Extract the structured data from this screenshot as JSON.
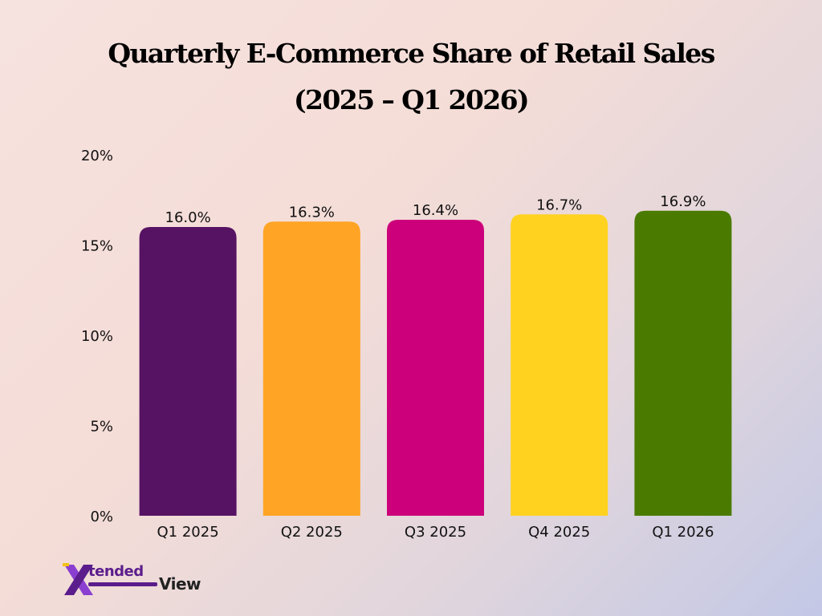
{
  "chart_data": {
    "type": "bar",
    "title_line1": "Quarterly E-Commerce Share of Retail Sales",
    "title_line2": "(2025 – Q1 2026)",
    "categories": [
      "Q1 2025",
      "Q2 2025",
      "Q3 2025",
      "Q4 2025",
      "Q1 2026"
    ],
    "values": [
      16.0,
      16.3,
      16.4,
      16.7,
      16.9
    ],
    "data_labels": [
      "16.0%",
      "16.3%",
      "16.4%",
      "16.7%",
      "16.9%"
    ],
    "colors": [
      "#561364",
      "#ffa424",
      "#cc007a",
      "#ffd21f",
      "#4a7b00"
    ],
    "ylim": [
      0,
      20
    ],
    "yticks": [
      0,
      5,
      10,
      15,
      20
    ],
    "ytick_labels": [
      "0%",
      "5%",
      "10%",
      "15%",
      "20%"
    ],
    "xlabel": "",
    "ylabel": "",
    "grid": false,
    "legend": "none"
  },
  "logo": {
    "word1": "tended",
    "word2": "View",
    "colors": [
      "#5b1d8c",
      "#8b3fd1",
      "#222222"
    ]
  }
}
